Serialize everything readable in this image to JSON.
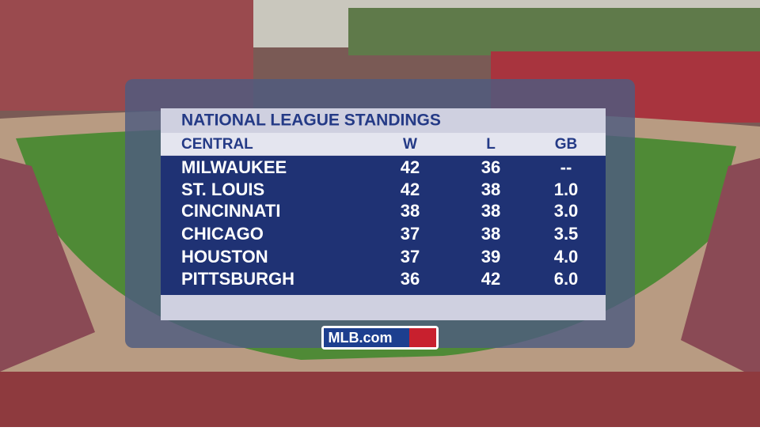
{
  "graphic": {
    "title": "NATIONAL LEAGUE STANDINGS",
    "header": [
      "CENTRAL",
      "W",
      "L",
      "GB"
    ],
    "rows": [
      [
        "MILWAUKEE",
        "42",
        "36",
        "--"
      ],
      [
        "ST. LOUIS",
        "42",
        "38",
        "1.0"
      ],
      [
        "CINCINNATI",
        "38",
        "38",
        "3.0"
      ],
      [
        "CHICAGO",
        "37",
        "38",
        "3.5"
      ],
      [
        "HOUSTON",
        "37",
        "39",
        "4.0"
      ],
      [
        "PITTSBURGH",
        "36",
        "42",
        "6.0"
      ]
    ],
    "logo": "MLB.com"
  }
}
